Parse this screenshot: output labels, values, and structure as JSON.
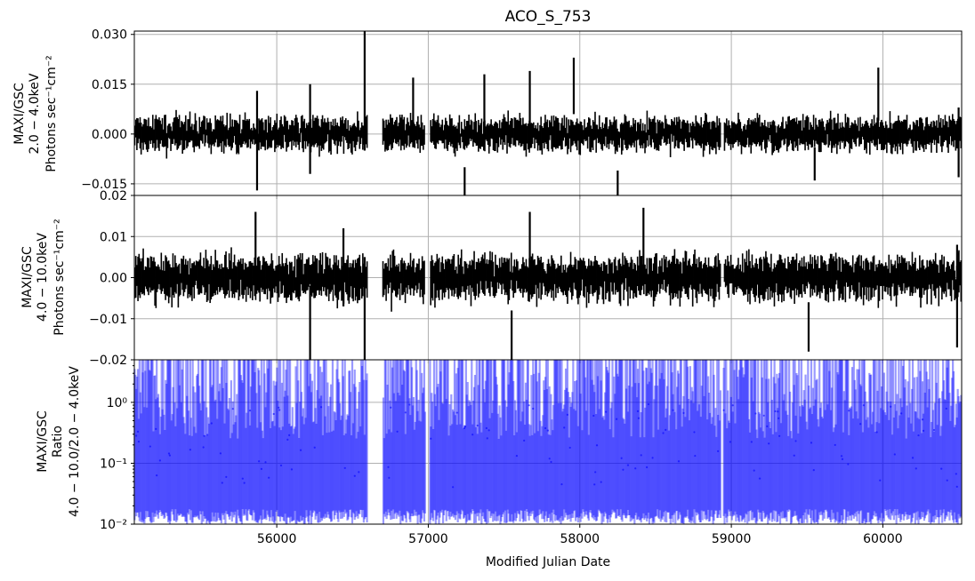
{
  "chart_data": {
    "type": "line",
    "title": "ACO_S_753",
    "xlabel": "Modified Julian Date",
    "xlim": [
      55060,
      60520
    ],
    "x_ticks": [
      56000,
      57000,
      58000,
      59000,
      60000
    ],
    "x_tick_labels": [
      "56000",
      "57000",
      "58000",
      "59000",
      "60000"
    ],
    "panels": [
      {
        "id": "soft",
        "ylabel_lines": [
          "MAXI/GSC",
          "2.0 − 4.0keV",
          "Photons sec⁻¹cm⁻²"
        ],
        "ylim": [
          -0.0185,
          0.031
        ],
        "yticks": [
          -0.015,
          0.0,
          0.015,
          0.03
        ],
        "ytick_labels": [
          "−0.015",
          "0.000",
          "0.015",
          "0.030"
        ],
        "color": "#000000",
        "spikes": [
          {
            "x": 55870,
            "lo": -0.017,
            "hi": 0.013
          },
          {
            "x": 56220,
            "lo": -0.012,
            "hi": 0.015
          },
          {
            "x": 56580,
            "lo": -0.005,
            "hi": 0.031
          },
          {
            "x": 56900,
            "lo": -0.004,
            "hi": 0.017
          },
          {
            "x": 57240,
            "lo": -0.021,
            "hi": -0.01
          },
          {
            "x": 57370,
            "lo": -0.003,
            "hi": 0.018
          },
          {
            "x": 57670,
            "lo": -0.003,
            "hi": 0.019
          },
          {
            "x": 57960,
            "lo": 0.006,
            "hi": 0.023
          },
          {
            "x": 58250,
            "lo": -0.022,
            "hi": -0.011
          },
          {
            "x": 59970,
            "lo": 0.004,
            "hi": 0.02
          },
          {
            "x": 59550,
            "lo": -0.014,
            "hi": -0.004
          },
          {
            "x": 60500,
            "lo": -0.013,
            "hi": 0.008
          }
        ]
      },
      {
        "id": "hard",
        "ylabel_lines": [
          "MAXI/GSC",
          "4.0 − 10.0keV",
          "Photons sec⁻¹cm⁻²"
        ],
        "ylim": [
          -0.02,
          0.02
        ],
        "yticks": [
          -0.02,
          -0.01,
          0.0,
          0.01,
          0.02
        ],
        "ytick_labels": [
          "−0.02",
          "−0.01",
          "0.00",
          "0.01",
          "0.02"
        ],
        "color": "#000000",
        "spikes": [
          {
            "x": 55860,
            "lo": -0.004,
            "hi": 0.016
          },
          {
            "x": 56220,
            "lo": -0.02,
            "hi": -0.002
          },
          {
            "x": 56580,
            "lo": -0.02,
            "hi": 0.005
          },
          {
            "x": 56440,
            "lo": -0.007,
            "hi": 0.012
          },
          {
            "x": 57550,
            "lo": -0.02,
            "hi": -0.008
          },
          {
            "x": 57670,
            "lo": -0.004,
            "hi": 0.016
          },
          {
            "x": 58420,
            "lo": -0.002,
            "hi": 0.017
          },
          {
            "x": 59510,
            "lo": -0.018,
            "hi": -0.006
          },
          {
            "x": 60490,
            "lo": -0.017,
            "hi": 0.008
          }
        ]
      },
      {
        "id": "ratio",
        "ylabel_lines": [
          "MAXI/GSC",
          "Ratio",
          "4.0 − 10.0/2.0 − 4.0keV"
        ],
        "yscale": "log",
        "ylim": [
          0.01,
          5.0
        ],
        "yticks": [
          0.01,
          0.1,
          1.0
        ],
        "ytick_labels": [
          "10⁻²",
          "10⁻¹",
          "10⁰"
        ],
        "color": "#0000ff"
      }
    ]
  }
}
